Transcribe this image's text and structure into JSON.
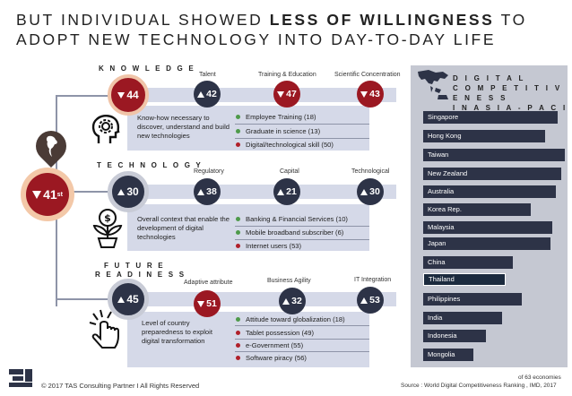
{
  "title": {
    "line1_a": "BUT INDIVIDUAL SHOWED ",
    "line1_b": "LESS OF WILLINGNESS",
    "line1_c": " TO",
    "line2": "ADOPT NEW TECHNOLOGY INTO DAY-TO-DAY LIFE"
  },
  "overall": {
    "rank": "41",
    "suffix": "st"
  },
  "knowledge": {
    "label": "K N O W L E D G E",
    "rank": "44",
    "desc": "Know-how necessary to discover, understand and build new technologies",
    "attrs": [
      {
        "name": "Talent",
        "rank": "42"
      },
      {
        "name": "Training & Education",
        "rank": "47"
      },
      {
        "name": "Scientific Concentration",
        "rank": "43"
      }
    ],
    "bullets": [
      {
        "text": "Employee Training (18)"
      },
      {
        "text": "Graduate in science (13)"
      },
      {
        "text": "Digital/technological skill (50)"
      }
    ]
  },
  "technology": {
    "label": "T E C H N O L O G Y",
    "rank": "30",
    "desc": "Overall context that enable the development of digital technologies",
    "attrs": [
      {
        "name": "Regulatory",
        "rank": "38"
      },
      {
        "name": "Capital",
        "rank": "21"
      },
      {
        "name": "Technological",
        "rank": "30"
      }
    ],
    "bullets": [
      {
        "text": "Banking & Financial Services (10)"
      },
      {
        "text": "Mobile broadband subscriber (6)"
      },
      {
        "text": "Internet users (53)"
      }
    ]
  },
  "future": {
    "label1": "F U T U R E",
    "label2": "R E A D I N E S S",
    "rank": "45",
    "desc": "Level of country preparedness to exploit digital transformation",
    "attrs": [
      {
        "name": "Adaptive attribute",
        "rank": "51"
      },
      {
        "name": "Business Agility",
        "rank": "32"
      },
      {
        "name": "IT Integration",
        "rank": "53"
      }
    ],
    "bullets": [
      {
        "text": "Attitude toward globalization (18)"
      },
      {
        "text": "Tablet possession (49)"
      },
      {
        "text": "e-Government (55)"
      },
      {
        "text": "Software piracy (56)"
      }
    ]
  },
  "panel": {
    "title1": "D I G I T A L",
    "title2": "C O M P E T I T I V E N E S S",
    "title3": "I N  A S I A - P A C I F I C",
    "countries": [
      "Singapore",
      "Hong Kong",
      "Taiwan",
      "New Zealand",
      "Australia",
      "Korea Rep.",
      "Malaysia",
      "Japan",
      "China",
      "Thailand",
      "Philippines",
      "India",
      "Indonesia",
      "Mongolia"
    ]
  },
  "footer": {
    "copyright": "© 2017 TAS Consulting Partner  I  All Rights Reserved",
    "note": "of 63 economies",
    "source": "Source :  World Digital Competitiveness Ranking , IMD, 2017"
  }
}
